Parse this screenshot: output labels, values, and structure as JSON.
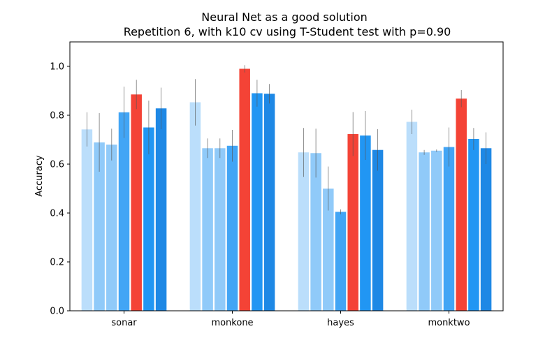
{
  "chart_data": {
    "type": "bar",
    "title": "Neural Net as a good solution",
    "subtitle": "Repetition 6, with k10 cv using T-Student test with p=0.90",
    "xlabel": "",
    "ylabel": "Accuracy",
    "ylim": [
      0,
      1.1
    ],
    "yticks": [
      0.0,
      0.2,
      0.4,
      0.6,
      0.8,
      1.0
    ],
    "ytick_labels": [
      "0.0",
      "0.2",
      "0.4",
      "0.6",
      "0.8",
      "1.0"
    ],
    "grid": false,
    "legend": "none",
    "categories": [
      "sonar",
      "monkone",
      "hayes",
      "monktwo"
    ],
    "series": [
      {
        "values": [
          0.742,
          0.853,
          0.648,
          0.773
        ],
        "errors": [
          0.07,
          0.095,
          0.1,
          0.05
        ],
        "color": "#bbdefb"
      },
      {
        "values": [
          0.689,
          0.665,
          0.645,
          0.648
        ],
        "errors": [
          0.12,
          0.04,
          0.1,
          0.01
        ],
        "color": "#90caf9"
      },
      {
        "values": [
          0.68,
          0.665,
          0.5,
          0.655
        ],
        "errors": [
          0.065,
          0.04,
          0.09,
          0.005
        ],
        "color": "#90caf9"
      },
      {
        "values": [
          0.812,
          0.675,
          0.405,
          0.67
        ],
        "errors": [
          0.105,
          0.065,
          0.01,
          0.08
        ],
        "color": "#42a5f5"
      },
      {
        "values": [
          0.885,
          0.99,
          0.723,
          0.868
        ],
        "errors": [
          0.06,
          0.015,
          0.09,
          0.035
        ],
        "color": "#f44336"
      },
      {
        "values": [
          0.75,
          0.89,
          0.717,
          0.703
        ],
        "errors": [
          0.11,
          0.055,
          0.1,
          0.045
        ],
        "color": "#2196f3"
      },
      {
        "values": [
          0.828,
          0.888,
          0.658,
          0.665
        ],
        "errors": [
          0.085,
          0.04,
          0.085,
          0.065
        ],
        "color": "#1e88e5"
      }
    ]
  }
}
